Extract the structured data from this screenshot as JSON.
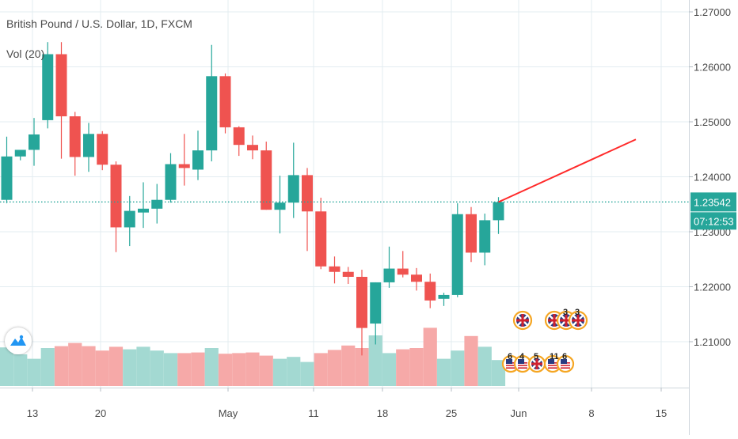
{
  "chart_title": "British Pound / U.S. Dollar, 1D, FXCM",
  "indicator_label": "Vol (20)",
  "colors": {
    "up": "#26a69a",
    "down": "#ef5350",
    "vol_up": "#a3d9d2",
    "vol_down": "#f6a9a8",
    "grid": "#e3ecf1",
    "axis_text": "#4a4a4a",
    "price_line": "#26a69a",
    "trend_line": "#ff2a2a",
    "badge_bg": "#26a69a",
    "event_border": "#f5a623"
  },
  "chart_data": {
    "type": "candlestick",
    "symbol": "British Pound / U.S. Dollar",
    "interval": "1D",
    "source": "FXCM",
    "y_axis": {
      "ticks": [
        "1.27000",
        "1.26000",
        "1.25000",
        "1.24000",
        "1.23000",
        "1.22000",
        "1.21000"
      ],
      "current_price": "1.23542",
      "countdown": "07:12:53"
    },
    "x_axis": {
      "ticks": [
        "13",
        "20",
        "May",
        "11",
        "18",
        "25",
        "Jun",
        "8",
        "15"
      ]
    },
    "candles": [
      {
        "date": "Apr 09",
        "o": 1.2358,
        "h": 1.2473,
        "l": 1.2352,
        "c": 1.2437
      },
      {
        "date": "Apr 10",
        "o": 1.2437,
        "h": 1.2448,
        "l": 1.243,
        "c": 1.2449
      },
      {
        "date": "Apr 13",
        "o": 1.2449,
        "h": 1.2507,
        "l": 1.242,
        "c": 1.2477
      },
      {
        "date": "Apr 14",
        "o": 1.2503,
        "h": 1.2645,
        "l": 1.2488,
        "c": 1.2623
      },
      {
        "date": "Apr 15",
        "o": 1.2623,
        "h": 1.2645,
        "l": 1.2433,
        "c": 1.251
      },
      {
        "date": "Apr 16",
        "o": 1.251,
        "h": 1.2518,
        "l": 1.2402,
        "c": 1.2436
      },
      {
        "date": "Apr 17",
        "o": 1.2436,
        "h": 1.2498,
        "l": 1.2409,
        "c": 1.2478
      },
      {
        "date": "Apr 20",
        "o": 1.2478,
        "h": 1.2483,
        "l": 1.2412,
        "c": 1.2422
      },
      {
        "date": "Apr 21",
        "o": 1.2422,
        "h": 1.2428,
        "l": 1.2263,
        "c": 1.2308
      },
      {
        "date": "Apr 22",
        "o": 1.2308,
        "h": 1.2365,
        "l": 1.2274,
        "c": 1.2338
      },
      {
        "date": "Apr 23",
        "o": 1.2335,
        "h": 1.239,
        "l": 1.2307,
        "c": 1.2342
      },
      {
        "date": "Apr 24",
        "o": 1.2342,
        "h": 1.2387,
        "l": 1.2315,
        "c": 1.2358
      },
      {
        "date": "Apr 27",
        "o": 1.2358,
        "h": 1.2443,
        "l": 1.2353,
        "c": 1.2423
      },
      {
        "date": "Apr 28",
        "o": 1.2423,
        "h": 1.2478,
        "l": 1.2384,
        "c": 1.2416
      },
      {
        "date": "Apr 29",
        "o": 1.2413,
        "h": 1.2484,
        "l": 1.2394,
        "c": 1.2448
      },
      {
        "date": "Apr 30",
        "o": 1.2448,
        "h": 1.264,
        "l": 1.2428,
        "c": 1.2583
      },
      {
        "date": "May 01",
        "o": 1.2583,
        "h": 1.2588,
        "l": 1.2479,
        "c": 1.249
      },
      {
        "date": "May 04",
        "o": 1.249,
        "h": 1.2492,
        "l": 1.2438,
        "c": 1.2458
      },
      {
        "date": "May 05",
        "o": 1.2458,
        "h": 1.2475,
        "l": 1.2432,
        "c": 1.2448
      },
      {
        "date": "May 06",
        "o": 1.2448,
        "h": 1.2464,
        "l": 1.234,
        "c": 1.234
      },
      {
        "date": "May 07",
        "o": 1.234,
        "h": 1.2402,
        "l": 1.2297,
        "c": 1.2353
      },
      {
        "date": "May 08",
        "o": 1.2353,
        "h": 1.2462,
        "l": 1.2325,
        "c": 1.2403
      },
      {
        "date": "May 11",
        "o": 1.2403,
        "h": 1.2416,
        "l": 1.2265,
        "c": 1.2337
      },
      {
        "date": "May 12",
        "o": 1.2337,
        "h": 1.2362,
        "l": 1.2232,
        "c": 1.2237
      },
      {
        "date": "May 13",
        "o": 1.2237,
        "h": 1.2255,
        "l": 1.2206,
        "c": 1.2227
      },
      {
        "date": "May 14",
        "o": 1.2227,
        "h": 1.2236,
        "l": 1.2205,
        "c": 1.2218
      },
      {
        "date": "May 15",
        "o": 1.2218,
        "h": 1.2231,
        "l": 1.2075,
        "c": 1.2125
      },
      {
        "date": "May 18",
        "o": 1.2133,
        "h": 1.2208,
        "l": 1.2095,
        "c": 1.2208
      },
      {
        "date": "May 19",
        "o": 1.2208,
        "h": 1.2273,
        "l": 1.2198,
        "c": 1.2233
      },
      {
        "date": "May 20",
        "o": 1.2233,
        "h": 1.2265,
        "l": 1.2217,
        "c": 1.2222
      },
      {
        "date": "May 21",
        "o": 1.2222,
        "h": 1.2234,
        "l": 1.2193,
        "c": 1.2209
      },
      {
        "date": "May 22",
        "o": 1.2209,
        "h": 1.2224,
        "l": 1.2161,
        "c": 1.2175
      },
      {
        "date": "May 25",
        "o": 1.2178,
        "h": 1.2189,
        "l": 1.2165,
        "c": 1.2185
      },
      {
        "date": "May 26",
        "o": 1.2185,
        "h": 1.2352,
        "l": 1.2181,
        "c": 1.2332
      },
      {
        "date": "May 27",
        "o": 1.2332,
        "h": 1.2345,
        "l": 1.2245,
        "c": 1.2262
      },
      {
        "date": "May 28",
        "o": 1.2262,
        "h": 1.2333,
        "l": 1.2239,
        "c": 1.2321
      },
      {
        "date": "May 29",
        "o": 1.2321,
        "h": 1.2363,
        "l": 1.2296,
        "c": 1.2354
      }
    ],
    "volume": [
      {
        "v": 0.61,
        "up": true
      },
      {
        "v": 0.5,
        "up": true
      },
      {
        "v": 0.43,
        "up": true
      },
      {
        "v": 0.6,
        "up": true
      },
      {
        "v": 0.63,
        "up": false
      },
      {
        "v": 0.68,
        "up": false
      },
      {
        "v": 0.63,
        "up": false
      },
      {
        "v": 0.56,
        "up": false
      },
      {
        "v": 0.62,
        "up": false
      },
      {
        "v": 0.58,
        "up": true
      },
      {
        "v": 0.62,
        "up": true
      },
      {
        "v": 0.56,
        "up": true
      },
      {
        "v": 0.52,
        "up": true
      },
      {
        "v": 0.52,
        "up": false
      },
      {
        "v": 0.53,
        "up": false
      },
      {
        "v": 0.6,
        "up": true
      },
      {
        "v": 0.51,
        "up": false
      },
      {
        "v": 0.52,
        "up": false
      },
      {
        "v": 0.53,
        "up": false
      },
      {
        "v": 0.48,
        "up": false
      },
      {
        "v": 0.43,
        "up": true
      },
      {
        "v": 0.46,
        "up": true
      },
      {
        "v": 0.38,
        "up": true
      },
      {
        "v": 0.52,
        "up": false
      },
      {
        "v": 0.57,
        "up": false
      },
      {
        "v": 0.64,
        "up": false
      },
      {
        "v": 0.6,
        "up": false
      },
      {
        "v": 0.8,
        "up": true
      },
      {
        "v": 0.52,
        "up": true
      },
      {
        "v": 0.58,
        "up": false
      },
      {
        "v": 0.6,
        "up": false
      },
      {
        "v": 0.92,
        "up": false
      },
      {
        "v": 0.43,
        "up": true
      },
      {
        "v": 0.56,
        "up": true
      },
      {
        "v": 0.79,
        "up": false
      },
      {
        "v": 0.62,
        "up": true
      },
      {
        "v": 0.41,
        "up": true
      }
    ],
    "trend_line": {
      "from": 1.2354,
      "to": 1.2468
    },
    "events": [
      {
        "flag": "uk",
        "row": "top",
        "label": ""
      },
      {
        "flag": "uk",
        "row": "top",
        "label": ""
      },
      {
        "flag": "uk",
        "row": "top",
        "label": "3"
      },
      {
        "flag": "uk",
        "row": "top",
        "label": "3"
      },
      {
        "flag": "us",
        "row": "bottom",
        "label": "6"
      },
      {
        "flag": "us",
        "row": "bottom",
        "label": "4"
      },
      {
        "flag": "uk",
        "row": "bottom",
        "label": "5"
      },
      {
        "flag": "us",
        "row": "bottom",
        "label": "11"
      },
      {
        "flag": "us",
        "row": "bottom",
        "label": "6"
      }
    ]
  }
}
